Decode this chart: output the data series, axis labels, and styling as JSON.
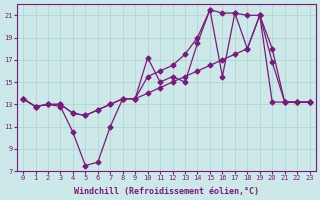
{
  "xlabel": "Windchill (Refroidissement éolien,°C)",
  "bg_color": "#cce8e8",
  "line_color": "#7b1a7b",
  "grid_color": "#aad4cc",
  "xlim": [
    -0.5,
    23.5
  ],
  "ylim": [
    7,
    22
  ],
  "yticks": [
    7,
    9,
    11,
    13,
    15,
    17,
    19,
    21
  ],
  "xticks": [
    0,
    1,
    2,
    3,
    4,
    5,
    6,
    7,
    8,
    9,
    10,
    11,
    12,
    13,
    14,
    15,
    16,
    17,
    18,
    19,
    20,
    21,
    22,
    23
  ],
  "line1_x": [
    0,
    1,
    2,
    3,
    4,
    5,
    6,
    7,
    8,
    9,
    10,
    11,
    12,
    13,
    14,
    15,
    16,
    17,
    18,
    19,
    20,
    21,
    22,
    23
  ],
  "line1_y": [
    13.5,
    12.8,
    13.0,
    12.8,
    10.5,
    7.5,
    7.8,
    11.0,
    13.5,
    13.5,
    17.2,
    15.0,
    15.5,
    15.0,
    18.5,
    21.5,
    21.2,
    21.2,
    21.0,
    21.0,
    18.0,
    13.2,
    13.2,
    13.2
  ],
  "line2_x": [
    0,
    1,
    2,
    3,
    4,
    5,
    6,
    7,
    8,
    9,
    10,
    11,
    12,
    13,
    14,
    15,
    16,
    17,
    18,
    19,
    20,
    21,
    22,
    23
  ],
  "line2_y": [
    13.5,
    12.8,
    13.0,
    13.0,
    12.2,
    12.0,
    12.5,
    13.0,
    13.5,
    13.5,
    14.0,
    14.5,
    15.0,
    15.5,
    16.0,
    16.5,
    17.0,
    17.5,
    18.0,
    21.0,
    13.2,
    13.2,
    13.2,
    13.2
  ],
  "line3_x": [
    0,
    1,
    2,
    3,
    4,
    5,
    6,
    7,
    8,
    9,
    10,
    11,
    12,
    13,
    14,
    15,
    16,
    17,
    18,
    19,
    20,
    21,
    22,
    23
  ],
  "line3_y": [
    13.5,
    12.8,
    13.0,
    13.0,
    12.2,
    12.0,
    12.5,
    13.0,
    13.5,
    13.5,
    15.5,
    16.0,
    16.5,
    17.5,
    19.0,
    21.5,
    15.5,
    21.2,
    18.0,
    21.0,
    16.8,
    13.2,
    13.2,
    13.2
  ],
  "marker": "D",
  "marker_size": 2.5,
  "linewidth": 0.9,
  "tick_fontsize": 5.0,
  "xlabel_fontsize": 6.0
}
